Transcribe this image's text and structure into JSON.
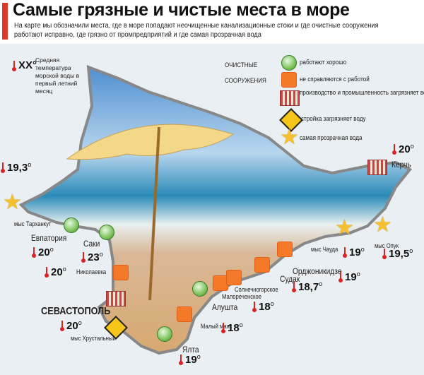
{
  "title": "Самые грязные и чистые места в море",
  "subtitle": "На карте мы обозначили места, где в море попадают неочищенные канализационные стоки и где очистные сооружения работают исправно, где грязно от промпредприятий и где самая прозрачная вода",
  "temp_legend": {
    "symbol": "XX°",
    "text": "Средняя температура морской воды в первый летний месяц"
  },
  "legend": {
    "group_label": "ОЧИСТНЫЕ СООРУЖЕНИЯ",
    "items": [
      {
        "icon": "green-circle-icon",
        "label": "работают хорошо"
      },
      {
        "icon": "orange-square-icon",
        "label": "не справляются с работой"
      },
      {
        "icon": "factory-icon",
        "label": "производство и промышленность загрязняет воду"
      },
      {
        "icon": "construction-sign-icon",
        "label": "стройка загрязняет воду"
      },
      {
        "icon": "star-icon",
        "label": "самая прозрачная вода"
      }
    ]
  },
  "places": [
    {
      "name": "мыс Тарханкут"
    },
    {
      "name": "Евпатория"
    },
    {
      "name": "Саки"
    },
    {
      "name": "Николаевка"
    },
    {
      "name": "СЕВАСТОПОЛЬ"
    },
    {
      "name": "мыс Хрустальный"
    },
    {
      "name": "Ялта"
    },
    {
      "name": "Малый маяк"
    },
    {
      "name": "Алушта"
    },
    {
      "name": "Малореченское"
    },
    {
      "name": "Солнечногорское"
    },
    {
      "name": "Судак"
    },
    {
      "name": "Орджоникидзе"
    },
    {
      "name": "мыс Чауда"
    },
    {
      "name": "мыс Опук"
    },
    {
      "name": "Керчь"
    }
  ],
  "temps": [
    "19,3",
    "20",
    "23",
    "20",
    "20",
    "19",
    "18",
    "18",
    "18,7",
    "19",
    "19",
    "19,5",
    "20"
  ],
  "colors": {
    "accent": "#e0382b",
    "good": "#7cc45a",
    "bad": "#f47a2a",
    "star": "#f5c030",
    "sea": "#e9eff3"
  }
}
